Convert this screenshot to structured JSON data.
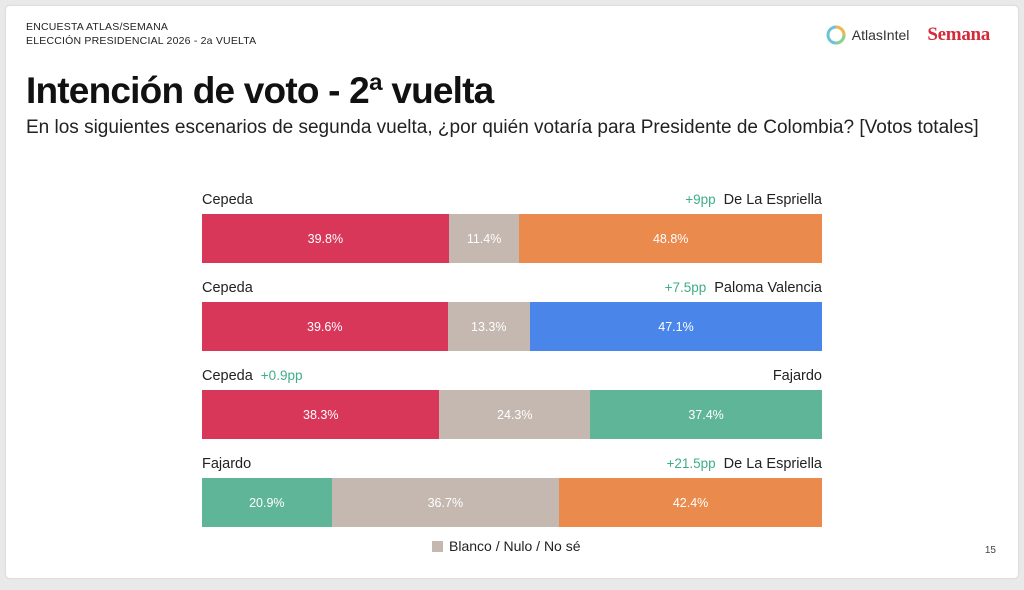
{
  "header": {
    "line1": "ENCUESTA ATLAS/SEMANA",
    "line2": "ELECCIÓN PRESIDENCIAL 2026 - 2a VUELTA"
  },
  "logos": {
    "atlas": "AtlasIntel",
    "semana": "Semana"
  },
  "colors": {
    "cepeda": "#d9375a",
    "blank": "#c4b8b0",
    "espriella": "#ea8a4c",
    "valencia": "#4a85ea",
    "fajardo": "#5fb598",
    "lead": "#3fae88"
  },
  "chart_data": {
    "type": "bar",
    "title": "Intención de voto - 2ª vuelta",
    "subtitle": "En los siguientes escenarios de segunda vuelta, ¿por quién votaría para Presidente de Colombia? [Votos totales]",
    "legend": "Blanco / Nulo / No sé",
    "scenarios": [
      {
        "left": "Cepeda",
        "right": "De La Espriella",
        "lead": "+9pp",
        "lead_side": "right",
        "values": [
          39.8,
          11.4,
          48.8
        ],
        "labels": [
          "39.8%",
          "11.4%",
          "48.8%"
        ],
        "colors": [
          "#d9375a",
          "#c4b8b0",
          "#ea8a4c"
        ]
      },
      {
        "left": "Cepeda",
        "right": "Paloma Valencia",
        "lead": "+7.5pp",
        "lead_side": "right",
        "values": [
          39.6,
          13.3,
          47.1
        ],
        "labels": [
          "39.6%",
          "13.3%",
          "47.1%"
        ],
        "colors": [
          "#d9375a",
          "#c4b8b0",
          "#4a85ea"
        ]
      },
      {
        "left": "Cepeda",
        "right": "Fajardo",
        "lead": "+0.9pp",
        "lead_side": "left",
        "values": [
          38.3,
          24.3,
          37.4
        ],
        "labels": [
          "38.3%",
          "24.3%",
          "37.4%"
        ],
        "colors": [
          "#d9375a",
          "#c4b8b0",
          "#5fb598"
        ]
      },
      {
        "left": "Fajardo",
        "right": "De La Espriella",
        "lead": "+21.5pp",
        "lead_side": "right",
        "values": [
          20.9,
          36.7,
          42.4
        ],
        "labels": [
          "20.9%",
          "36.7%",
          "42.4%"
        ],
        "colors": [
          "#5fb598",
          "#c4b8b0",
          "#ea8a4c"
        ]
      }
    ]
  },
  "page_number": "15"
}
